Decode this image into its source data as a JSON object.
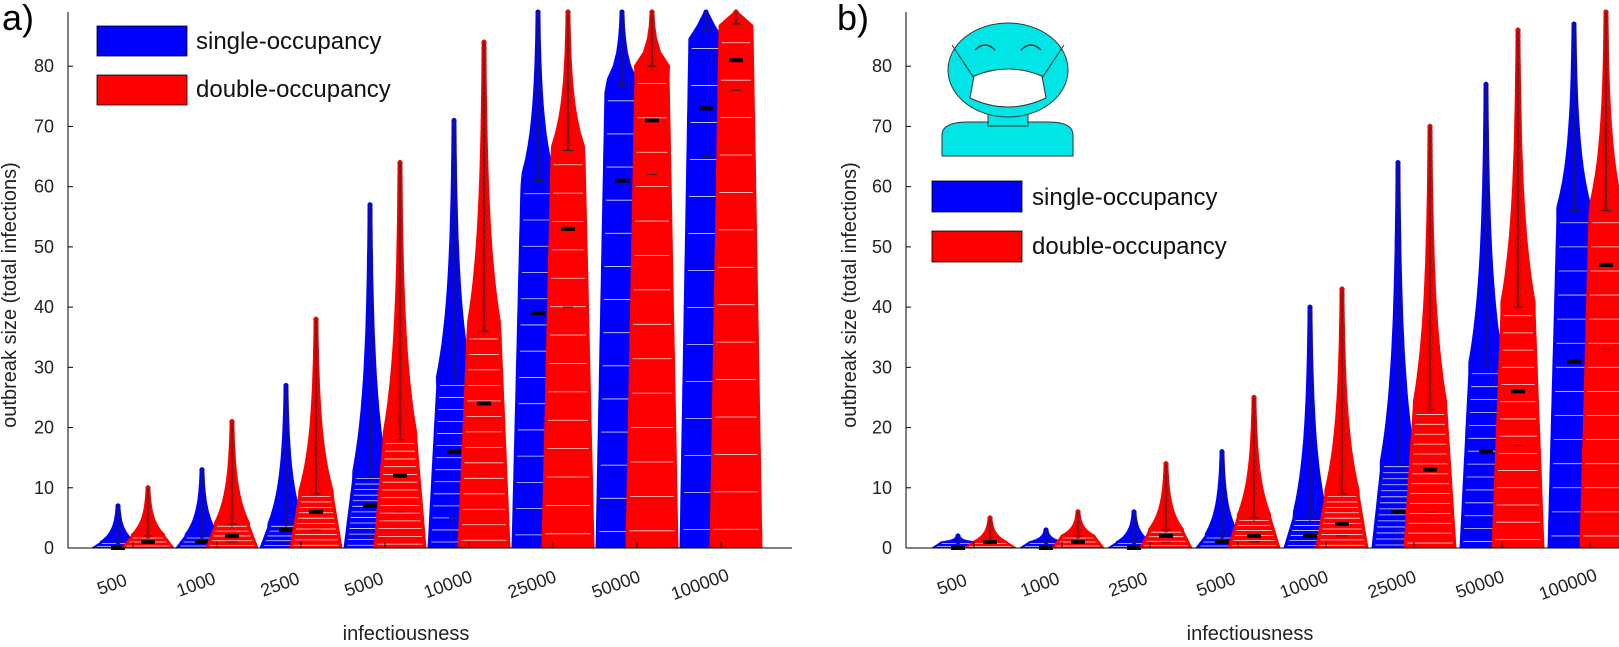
{
  "chart_data": [
    {
      "panel_label": "a)",
      "type": "violin-swarm",
      "xlabel": "infectiousness",
      "ylabel": "outbreak size (total infections)",
      "ylim": [
        0,
        89
      ],
      "yticks": [
        0,
        10,
        20,
        30,
        40,
        50,
        60,
        70,
        80
      ],
      "categories": [
        "500",
        "1000",
        "2500",
        "5000",
        "10000",
        "25000",
        "50000",
        "100000"
      ],
      "legend_position": "top-left",
      "series": [
        {
          "name": "single-occupancy",
          "color": "#0000ff",
          "median": [
            0,
            1,
            3,
            7,
            16,
            39,
            61,
            73
          ],
          "q1": [
            0,
            0,
            1,
            2,
            5,
            20,
            52,
            65
          ],
          "q3": [
            1,
            2,
            4,
            12,
            28,
            61,
            77,
            86
          ],
          "max": [
            7,
            13,
            27,
            57,
            71,
            89,
            89,
            89
          ]
        },
        {
          "name": "double-occupancy",
          "color": "#ff0000",
          "median": [
            1,
            2,
            6,
            12,
            24,
            53,
            71,
            81
          ],
          "q1": [
            0,
            1,
            3,
            6,
            12,
            40,
            62,
            76
          ],
          "q3": [
            2,
            4,
            9,
            18,
            36,
            66,
            80,
            87
          ],
          "max": [
            10,
            21,
            38,
            64,
            84,
            89,
            89,
            89
          ]
        }
      ]
    },
    {
      "panel_label": "b)",
      "type": "violin-swarm",
      "xlabel": "infectiousness",
      "ylabel": "outbreak size (total infections)",
      "ylim": [
        0,
        89
      ],
      "yticks": [
        0,
        10,
        20,
        30,
        40,
        50,
        60,
        70,
        80
      ],
      "categories": [
        "500",
        "1000",
        "2500",
        "5000",
        "10000",
        "25000",
        "50000",
        "100000"
      ],
      "legend_position": "center-left",
      "icon": "masked-person-icon",
      "series": [
        {
          "name": "single-occupancy",
          "color": "#0000ff",
          "median": [
            0,
            0,
            0,
            1,
            2,
            6,
            16,
            31
          ],
          "q1": [
            0,
            0,
            0,
            0,
            0,
            1,
            5,
            24
          ],
          "q3": [
            0,
            1,
            1,
            2,
            5,
            14,
            30,
            56
          ],
          "max": [
            2,
            3,
            6,
            16,
            40,
            64,
            77,
            87
          ]
        },
        {
          "name": "double-occupancy",
          "color": "#ff0000",
          "median": [
            1,
            1,
            2,
            2,
            4,
            13,
            26,
            47
          ],
          "q1": [
            0,
            0,
            1,
            1,
            2,
            6,
            17,
            33
          ],
          "q3": [
            1,
            2,
            3,
            5,
            9,
            23,
            40,
            56
          ],
          "max": [
            5,
            6,
            14,
            25,
            43,
            70,
            86,
            89
          ]
        }
      ]
    }
  ]
}
